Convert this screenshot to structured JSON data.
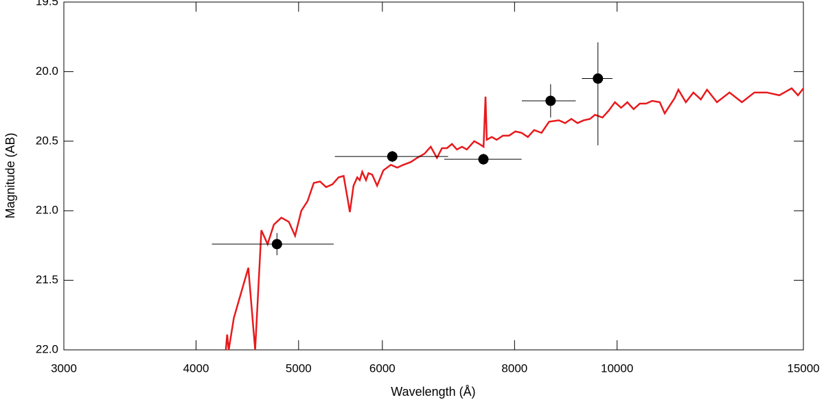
{
  "chart_data": {
    "type": "line",
    "x_label": "Wavelength (Å)",
    "y_label": "Magnitude (AB)",
    "xscale": "log",
    "xlim": [
      3000,
      15000
    ],
    "ylim": [
      22.0,
      19.5
    ],
    "xticks": [
      3000,
      4000,
      5000,
      6000,
      8000,
      10000,
      15000
    ],
    "yticks": [
      19.5,
      {
        "value": 20.0,
        "label": "20.0"
      },
      20.5,
      {
        "value": 21.0,
        "label": "21.0"
      },
      21.5,
      {
        "value": 22.0,
        "label": "22.0"
      }
    ],
    "series": [
      {
        "type": "line",
        "color": "#e8191c",
        "x": [
          4268,
          4280,
          4295,
          4343,
          4482,
          4549,
          4611,
          4674,
          4738,
          4816,
          4895,
          4962,
          5030,
          5099,
          5168,
          5239,
          5309,
          5382,
          5455,
          5515,
          5559,
          5590,
          5635,
          5681,
          5712,
          5743,
          5790,
          5821,
          5868,
          5932,
          6013,
          6112,
          6197,
          6280,
          6383,
          6471,
          6576,
          6666,
          6757,
          6831,
          6905,
          6981,
          7057,
          7134,
          7211,
          7328,
          7408,
          7478,
          7510,
          7531,
          7612,
          7695,
          7800,
          7905,
          8014,
          8124,
          8235,
          8348,
          8484,
          8624,
          8810,
          8930,
          9053,
          9175,
          9300,
          9428,
          9531,
          9687,
          9820,
          9953,
          10088,
          10226,
          10366,
          10507,
          10651,
          10795,
          10973,
          11092,
          11335,
          11427,
          11614,
          11806,
          11999,
          12162,
          12428,
          12771,
          13121,
          13483,
          13854,
          14234,
          14622,
          14824,
          15000
        ],
        "y": [
          22.0,
          21.89,
          22.0,
          21.77,
          21.41,
          22.0,
          21.14,
          21.24,
          21.1,
          21.05,
          21.08,
          21.18,
          21.0,
          20.93,
          20.8,
          20.79,
          20.83,
          20.81,
          20.76,
          20.75,
          20.9,
          21.01,
          20.82,
          20.76,
          20.78,
          20.72,
          20.78,
          20.73,
          20.74,
          20.82,
          20.71,
          20.67,
          20.69,
          20.67,
          20.65,
          20.62,
          20.59,
          20.54,
          20.62,
          20.55,
          20.55,
          20.52,
          20.56,
          20.54,
          20.56,
          20.5,
          20.52,
          20.54,
          20.18,
          20.49,
          20.47,
          20.49,
          20.46,
          20.46,
          20.43,
          20.44,
          20.47,
          20.42,
          20.44,
          20.36,
          20.35,
          20.37,
          20.34,
          20.37,
          20.35,
          20.34,
          20.31,
          20.33,
          20.28,
          20.22,
          20.26,
          20.22,
          20.27,
          20.23,
          20.23,
          20.21,
          20.22,
          20.3,
          20.19,
          20.13,
          20.22,
          20.15,
          20.2,
          20.13,
          20.22,
          20.15,
          20.22,
          20.15,
          20.15,
          20.17,
          20.12,
          20.17,
          20.12
        ]
      },
      {
        "type": "scatter",
        "color": "#000000",
        "x": [
          4770,
          6131,
          7476,
          8653,
          9592
        ],
        "y": [
          21.24,
          20.61,
          20.63,
          20.21,
          20.05
        ],
        "xerr_minus": [
          630,
          721,
          612,
          525,
          329
        ],
        "xerr_plus": [
          627,
          792,
          648,
          487,
          308
        ],
        "yerr_minus": [
          0.08,
          0.04,
          0.04,
          0.12,
          0.26
        ],
        "yerr_plus": [
          0.08,
          0.04,
          0.04,
          0.12,
          0.48
        ]
      }
    ]
  }
}
